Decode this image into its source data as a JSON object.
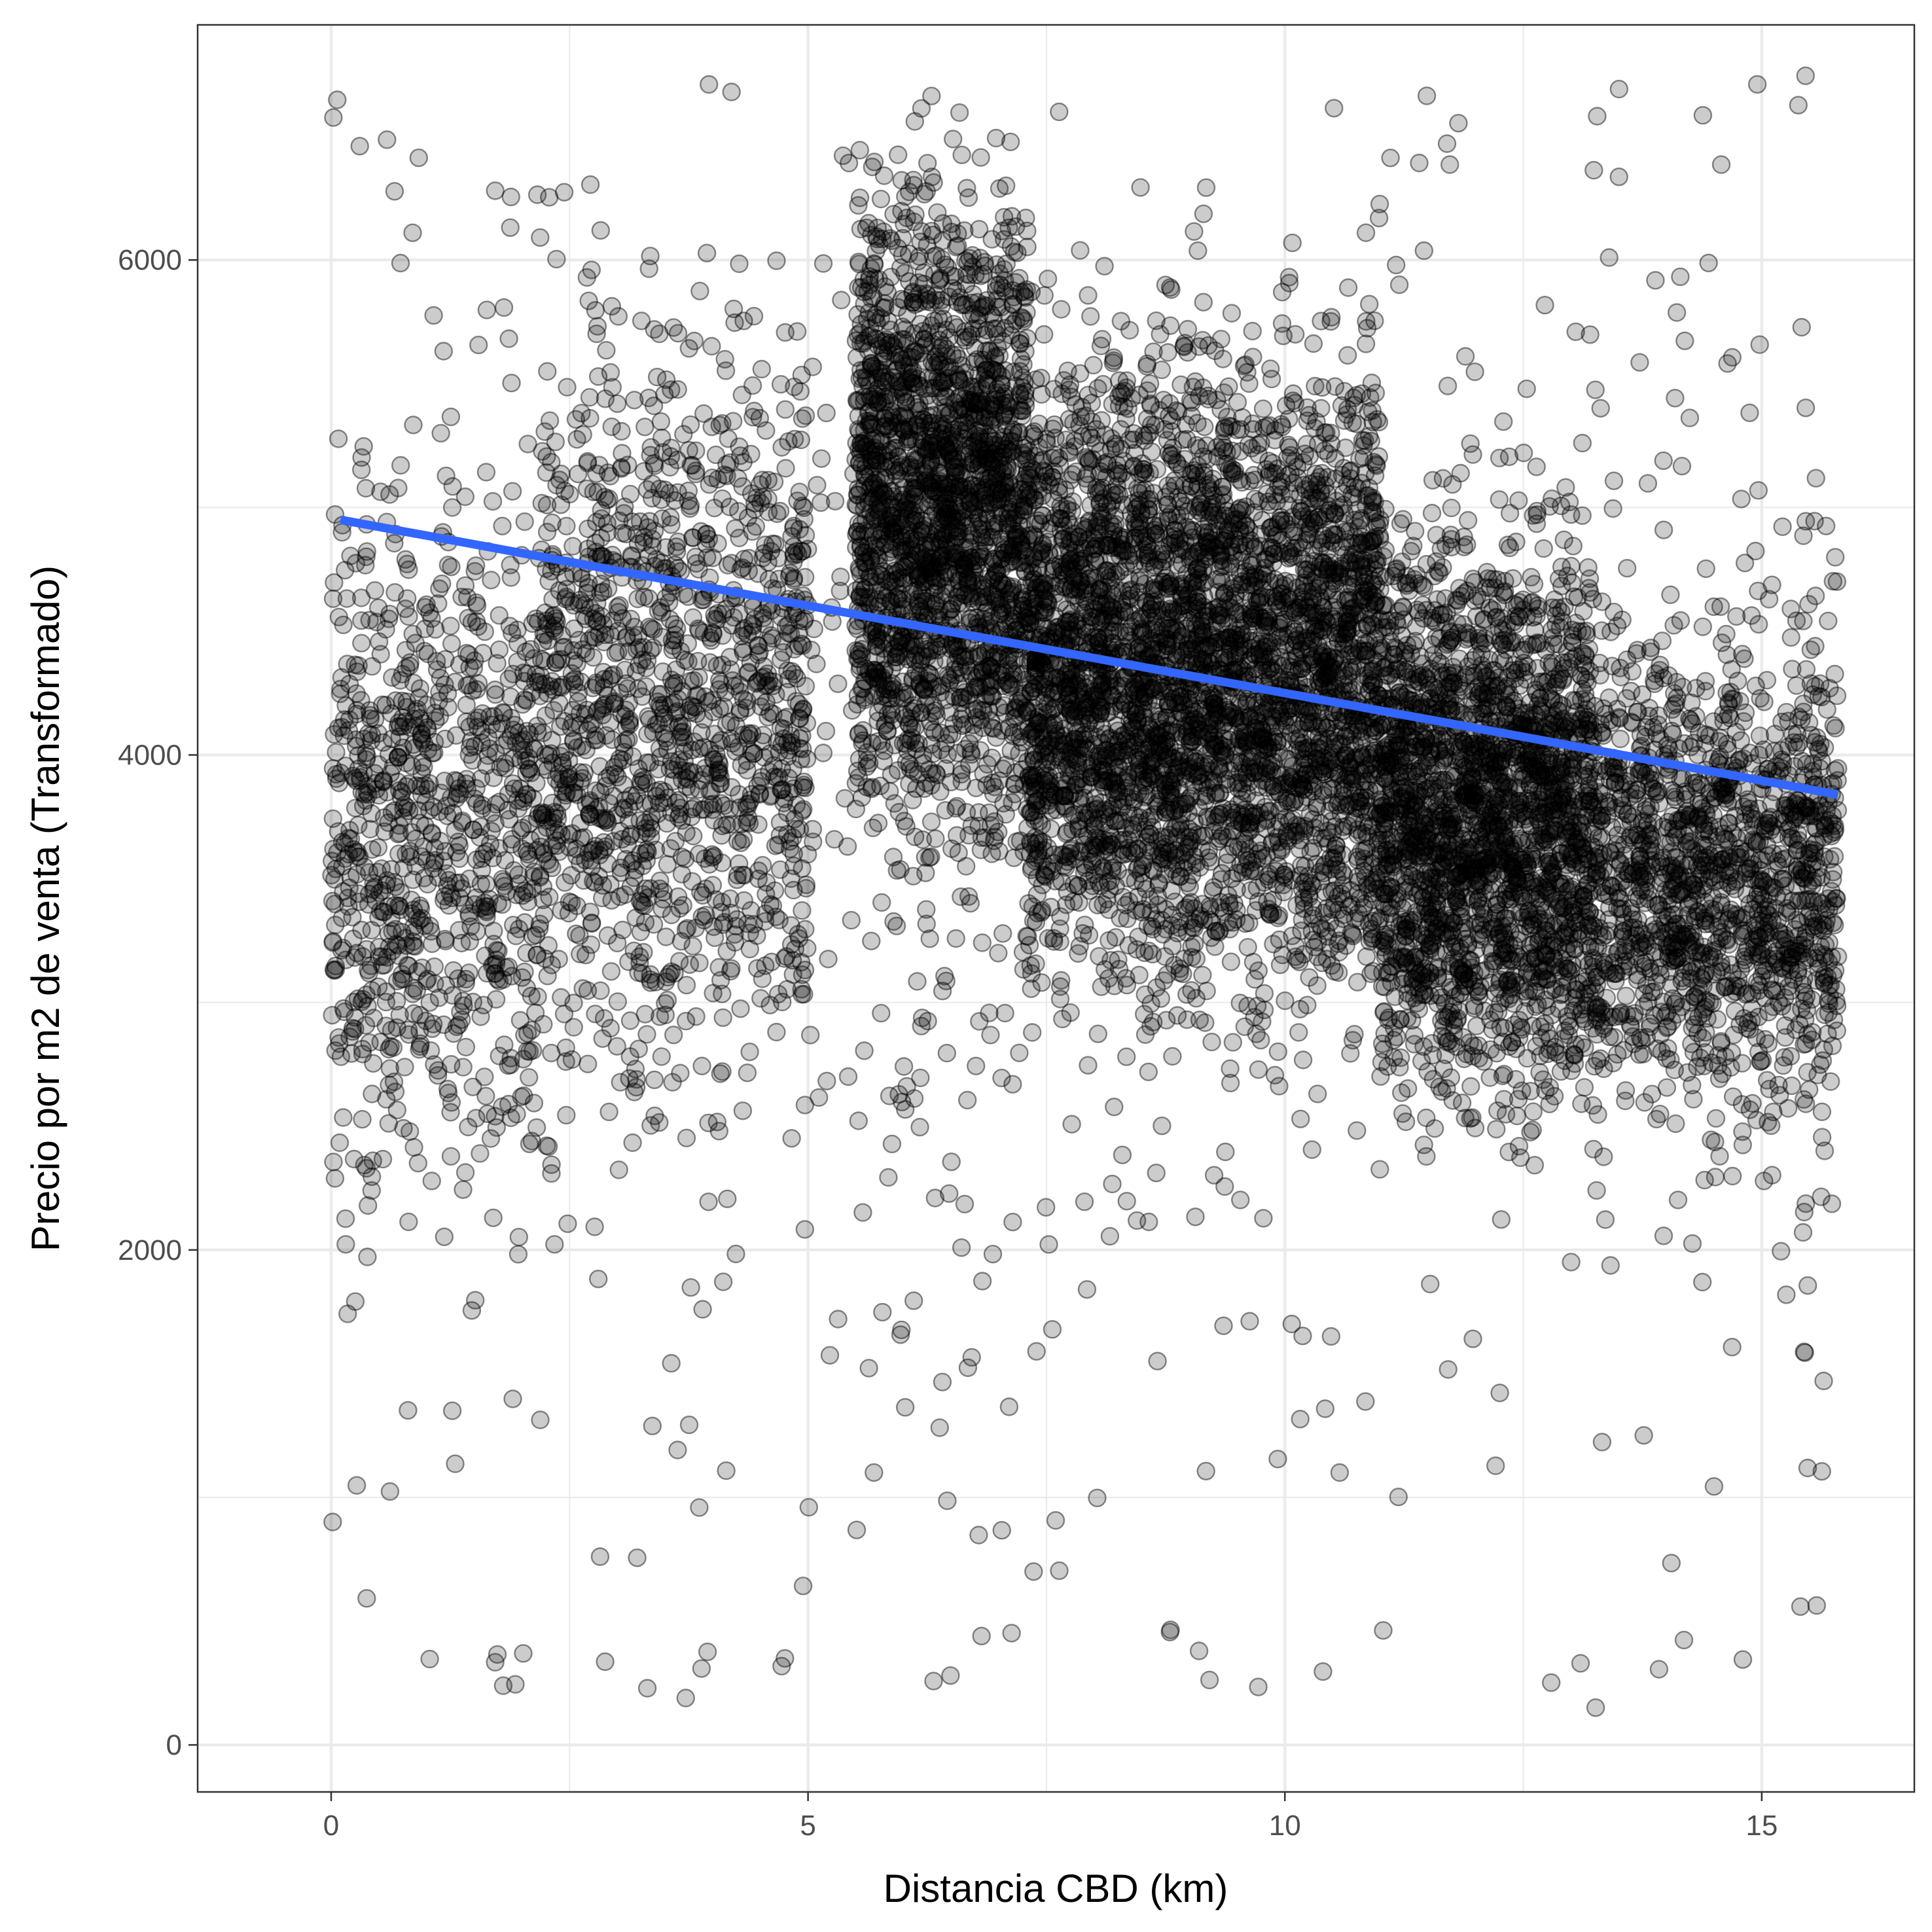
{
  "chart_data": {
    "type": "scatter",
    "title": "",
    "xlabel": "Distancia CBD (km)",
    "ylabel": "Precio por m2 de venta (Transformado)",
    "xlim": [
      -1.4,
      16.6
    ],
    "ylim": [
      -190,
      6950
    ],
    "x_ticks": [
      0,
      5,
      10,
      15
    ],
    "x_tick_labels": [
      "0",
      "5",
      "10",
      "15"
    ],
    "y_ticks": [
      0,
      2000,
      4000,
      6000
    ],
    "y_tick_labels": [
      "0",
      "2000",
      "4000",
      "6000"
    ],
    "grid": true,
    "legend": "none",
    "point_color": "#000000",
    "point_alpha": 0.2,
    "fit_line": {
      "color": "#3366FF",
      "x": [
        0.1,
        15.8
      ],
      "y": [
        4950,
        3840
      ]
    },
    "density_regions": [
      {
        "x": [
          0,
          2.2
        ],
        "y": [
          1900,
          5400
        ],
        "weight": 0.5
      },
      {
        "x": [
          2.2,
          5.0
        ],
        "y": [
          2300,
          6200
        ],
        "weight": 0.8
      },
      {
        "x": [
          5.5,
          7.3
        ],
        "y": [
          3200,
          6800
        ],
        "weight": 1.4
      },
      {
        "x": [
          7.3,
          11.0
        ],
        "y": [
          2600,
          6100
        ],
        "weight": 2.6
      },
      {
        "x": [
          11.0,
          13.2
        ],
        "y": [
          2200,
          5300
        ],
        "weight": 1.5
      },
      {
        "x": [
          13.2,
          15.8
        ],
        "y": [
          2200,
          4800
        ],
        "weight": 0.9
      },
      {
        "x": [
          0,
          15.8
        ],
        "y": [
          1000,
          6700
        ],
        "weight": 0.6
      }
    ],
    "points": [
      [
        0.27,
        4180
      ],
      [
        0.3,
        6460
      ],
      [
        0.37,
        2330
      ],
      [
        0.78,
        4790
      ],
      [
        0.78,
        3260
      ],
      [
        0.8,
        3150
      ],
      [
        1.15,
        5300
      ],
      [
        1.27,
        5000
      ],
      [
        1.37,
        3460
      ],
      [
        1.55,
        4150
      ],
      [
        1.57,
        3710
      ],
      [
        1.6,
        3600
      ],
      [
        1.72,
        6280
      ],
      [
        2.05,
        4220
      ],
      [
        2.05,
        3610
      ],
      [
        4.3,
        4480
      ],
      [
        4.18,
        3780
      ],
      [
        4.2,
        3720
      ],
      [
        4.85,
        3600
      ],
      [
        4.95,
        3780
      ],
      [
        5.05,
        3700
      ],
      [
        3.0,
        3240
      ],
      [
        3.35,
        3080
      ],
      [
        1.27,
        1350
      ],
      [
        0.25,
        2940
      ],
      [
        10.85,
        6110
      ],
      [
        11.55,
        5110
      ],
      [
        12.25,
        5200
      ],
      [
        13.05,
        5710
      ],
      [
        13.4,
        6010
      ],
      [
        15.55,
        3880
      ],
      [
        15.7,
        3420
      ],
      [
        15.75,
        3110
      ],
      [
        14.3,
        3330
      ],
      [
        13.3,
        3300
      ],
      [
        9.1,
        380
      ],
      [
        13.1,
        330
      ],
      [
        11.7,
        6470
      ],
      [
        11.2,
        5900
      ],
      [
        9.1,
        5650
      ]
    ]
  }
}
